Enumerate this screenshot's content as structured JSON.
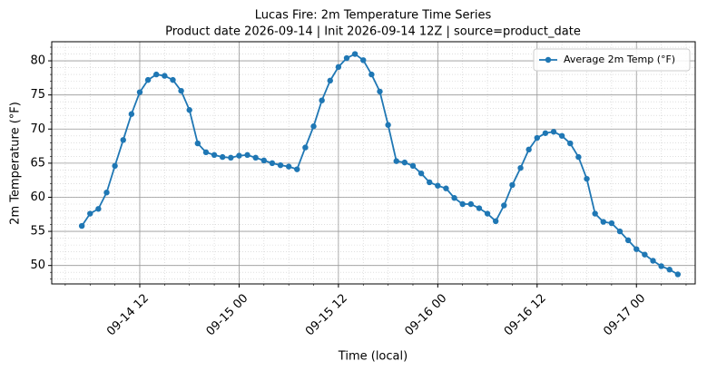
{
  "chart_data": {
    "type": "line",
    "title": "Lucas Fire: 2m Temperature Time Series",
    "subtitle": "Product date 2026-09-14 | Init 2026-09-14 12Z | source=product_date",
    "x_label": "Time (local)",
    "y_label": "2m Temperature (°F)",
    "x": [
      "09-14 05",
      "09-14 06",
      "09-14 07",
      "09-14 08",
      "09-14 09",
      "09-14 10",
      "09-14 11",
      "09-14 12",
      "09-14 13",
      "09-14 14",
      "09-14 15",
      "09-14 16",
      "09-14 17",
      "09-14 18",
      "09-14 19",
      "09-14 20",
      "09-14 21",
      "09-14 22",
      "09-14 23",
      "09-15 00",
      "09-15 01",
      "09-15 02",
      "09-15 03",
      "09-15 04",
      "09-15 05",
      "09-15 06",
      "09-15 07",
      "09-15 08",
      "09-15 09",
      "09-15 10",
      "09-15 11",
      "09-15 12",
      "09-15 13",
      "09-15 14",
      "09-15 15",
      "09-15 16",
      "09-15 17",
      "09-15 18",
      "09-15 19",
      "09-15 20",
      "09-15 21",
      "09-15 22",
      "09-15 23",
      "09-16 00",
      "09-16 01",
      "09-16 02",
      "09-16 03",
      "09-16 04",
      "09-16 05",
      "09-16 06",
      "09-16 07",
      "09-16 08",
      "09-16 09",
      "09-16 10",
      "09-16 11",
      "09-16 12",
      "09-16 13",
      "09-16 14",
      "09-16 15",
      "09-16 16",
      "09-16 17",
      "09-16 18",
      "09-16 19",
      "09-16 20",
      "09-16 21",
      "09-16 22",
      "09-16 23",
      "09-17 00",
      "09-17 01",
      "09-17 02",
      "09-17 03",
      "09-17 04",
      "09-17 05"
    ],
    "series": [
      {
        "name": "Average 2m Temp (°F)",
        "color": "#1f77b4",
        "values": [
          55.8,
          57.6,
          58.3,
          60.7,
          64.6,
          68.4,
          72.2,
          75.4,
          77.2,
          78.0,
          77.8,
          77.2,
          75.6,
          72.8,
          67.9,
          66.6,
          66.2,
          65.9,
          65.8,
          66.1,
          66.2,
          65.8,
          65.4,
          65.0,
          64.7,
          64.5,
          64.1,
          67.3,
          70.4,
          74.2,
          77.1,
          79.1,
          80.4,
          81.0,
          80.1,
          78.0,
          75.5,
          70.6,
          65.3,
          65.1,
          64.6,
          63.5,
          62.2,
          61.7,
          61.3,
          59.9,
          59.0,
          59.0,
          58.4,
          57.6,
          56.5,
          58.8,
          61.8,
          64.3,
          67.0,
          68.7,
          69.4,
          69.6,
          69.0,
          67.9,
          65.9,
          62.7,
          57.6,
          56.4,
          56.2,
          55.0,
          53.7,
          52.4,
          51.6,
          50.7,
          49.9,
          49.4,
          48.7
        ]
      }
    ],
    "xlim": [
      "09-14 01:22",
      "09-17 07:06"
    ],
    "xticks": [
      "09-14 12",
      "09-15 00",
      "09-15 12",
      "09-16 00",
      "09-16 12",
      "09-17 00"
    ],
    "ylim": [
      47.3,
      82.8
    ],
    "yticks": [
      50,
      55,
      60,
      65,
      70,
      75,
      80
    ],
    "grid": true,
    "minor_grid": true,
    "legend": "upper right"
  }
}
